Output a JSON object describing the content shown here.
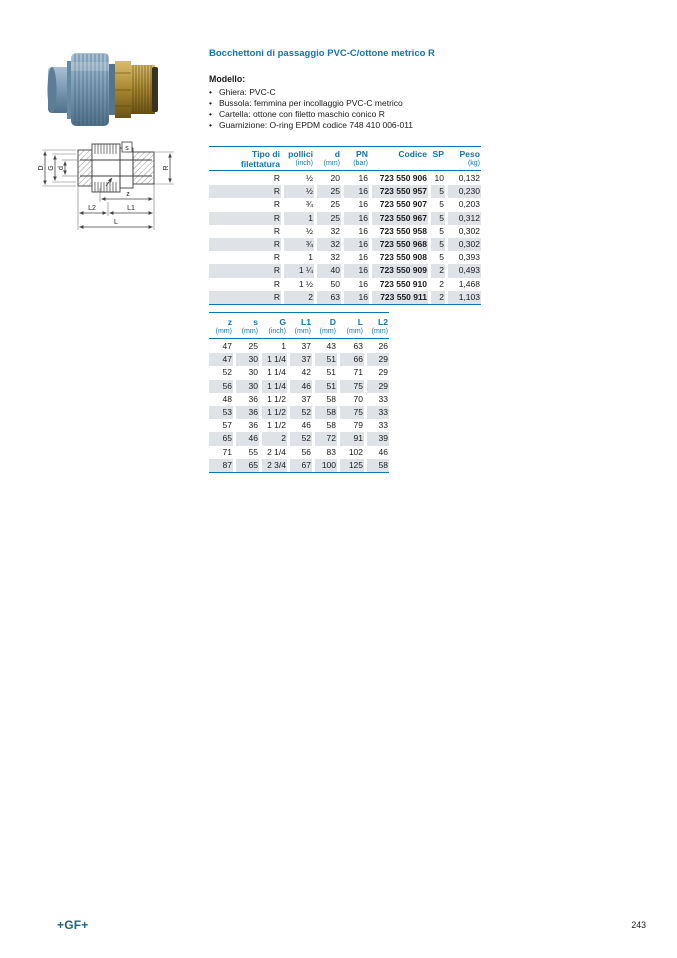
{
  "header": {
    "title": "Bocchettoni di passaggio PVC-C/ottone metrico R"
  },
  "model": {
    "label": "Modello:",
    "bullet_glyph": "•",
    "bullets": [
      "Ghiera: PVC-C",
      "Bussola: femmina per incollaggio PVC-C metrico",
      "Cartella: ottone con filetto maschio conico R",
      "Guarnizione: O-ring EPDM codice 748 410 006-011"
    ]
  },
  "table1": {
    "columns": [
      {
        "label": "Tipo di",
        "sub": "filettatura",
        "sub_bold": true
      },
      {
        "label": "pollici",
        "sub": "(inch)"
      },
      {
        "label": "d",
        "sub": "(mm)"
      },
      {
        "label": "PN",
        "sub": "(bar)"
      },
      {
        "label": "Codice",
        "sub": ""
      },
      {
        "label": "SP",
        "sub": ""
      },
      {
        "label": "Peso",
        "sub": "(kg)"
      }
    ],
    "rows": [
      [
        "R",
        "½",
        "20",
        "16",
        "723 550 906",
        "10",
        "0,132"
      ],
      [
        "R",
        "½",
        "25",
        "16",
        "723 550 957",
        "5",
        "0,230"
      ],
      [
        "R",
        "¾",
        "25",
        "16",
        "723 550 907",
        "5",
        "0,203"
      ],
      [
        "R",
        "1",
        "25",
        "16",
        "723 550 967",
        "5",
        "0,312"
      ],
      [
        "R",
        "½",
        "32",
        "16",
        "723 550 958",
        "5",
        "0,302"
      ],
      [
        "R",
        "¾",
        "32",
        "16",
        "723 550 968",
        "5",
        "0,302"
      ],
      [
        "R",
        "1",
        "32",
        "16",
        "723 550 908",
        "5",
        "0,393"
      ],
      [
        "R",
        "1 ¼",
        "40",
        "16",
        "723 550 909",
        "2",
        "0,493"
      ],
      [
        "R",
        "1 ½",
        "50",
        "16",
        "723 550 910",
        "2",
        "1,468"
      ],
      [
        "R",
        "2",
        "63",
        "16",
        "723 550 911",
        "2",
        "1,103"
      ]
    ]
  },
  "table2": {
    "columns": [
      {
        "label": "z",
        "sub": "(mm)"
      },
      {
        "label": "s",
        "sub": "(mm)"
      },
      {
        "label": "G",
        "sub": "(inch)"
      },
      {
        "label": "L1",
        "sub": "(mm)"
      },
      {
        "label": "D",
        "sub": "(mm)"
      },
      {
        "label": "L",
        "sub": "(mm)"
      },
      {
        "label": "L2",
        "sub": "(mm)"
      }
    ],
    "rows": [
      [
        "47",
        "25",
        "1",
        "37",
        "43",
        "63",
        "26"
      ],
      [
        "47",
        "30",
        "1 1/4",
        "37",
        "51",
        "66",
        "29"
      ],
      [
        "52",
        "30",
        "1 1/4",
        "42",
        "51",
        "71",
        "29"
      ],
      [
        "56",
        "30",
        "1 1/4",
        "46",
        "51",
        "75",
        "29"
      ],
      [
        "48",
        "36",
        "1 1/2",
        "37",
        "58",
        "70",
        "33"
      ],
      [
        "53",
        "36",
        "1 1/2",
        "52",
        "58",
        "75",
        "33"
      ],
      [
        "57",
        "36",
        "1 1/2",
        "46",
        "58",
        "79",
        "33"
      ],
      [
        "65",
        "46",
        "2",
        "52",
        "72",
        "91",
        "39"
      ],
      [
        "71",
        "55",
        "2 1/4",
        "56",
        "83",
        "102",
        "46"
      ],
      [
        "87",
        "65",
        "2 3/4",
        "67",
        "100",
        "125",
        "58"
      ]
    ]
  },
  "drawing": {
    "labels": {
      "D": "D",
      "G": "G",
      "d": "d",
      "s": "s",
      "R": "R",
      "z": "z",
      "L2": "L2",
      "L1": "L1",
      "L": "L"
    }
  },
  "footer": {
    "logo": "+GF+",
    "page_number": "243"
  },
  "colors": {
    "accent": "#0e76b4",
    "row_shade": "#dfe3e8",
    "logo": "#1e647f"
  }
}
